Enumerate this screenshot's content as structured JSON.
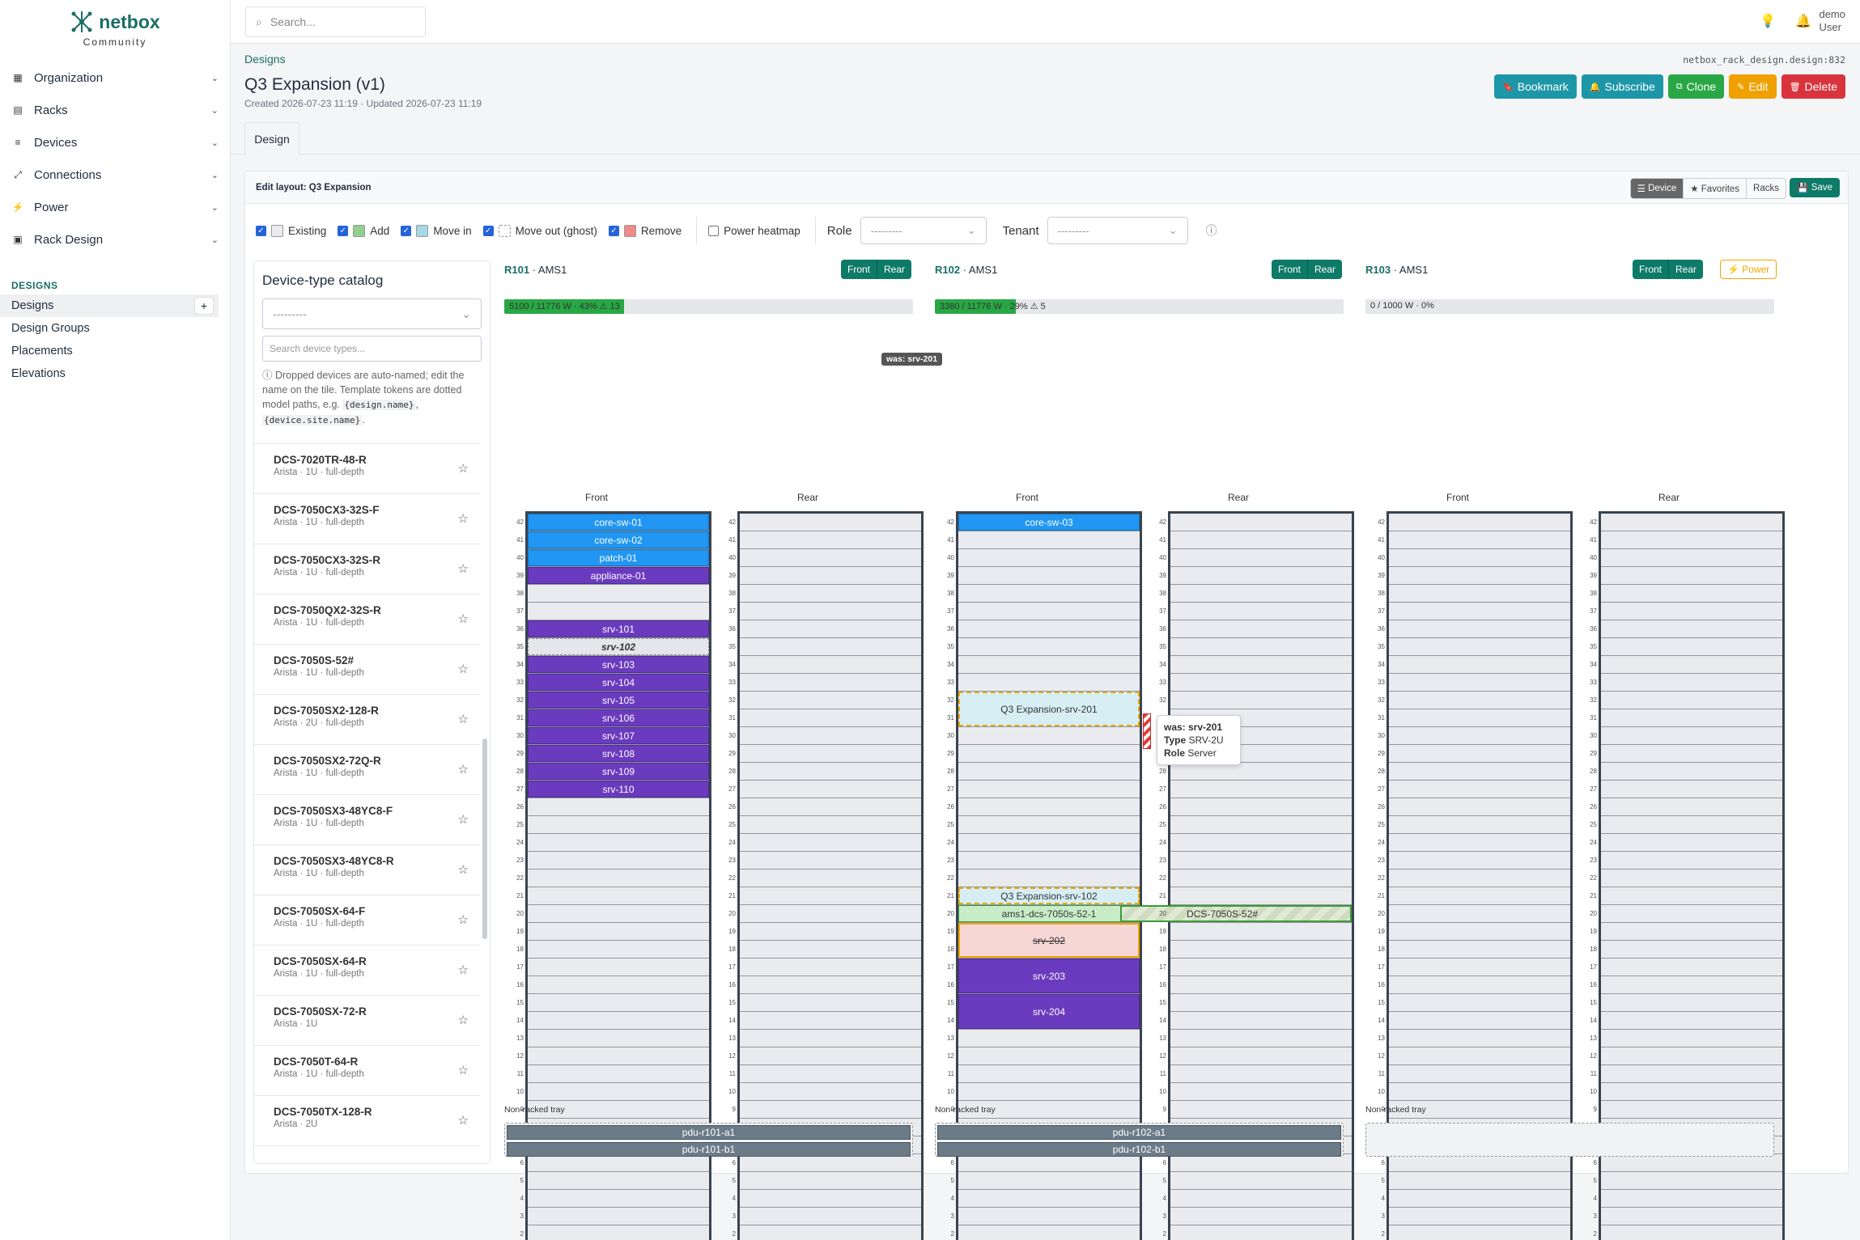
{
  "brand": {
    "name": "netbox",
    "edition": "Community"
  },
  "search": {
    "placeholder": "Search..."
  },
  "user": {
    "name": "demo",
    "role": "User"
  },
  "nav": [
    {
      "label": "Organization",
      "icon": "building-icon"
    },
    {
      "label": "Racks",
      "icon": "rack-icon"
    },
    {
      "label": "Devices",
      "icon": "server-icon"
    },
    {
      "label": "Connections",
      "icon": "cable-icon"
    },
    {
      "label": "Power",
      "icon": "bolt-icon"
    },
    {
      "label": "Rack Design",
      "icon": "layout-icon"
    }
  ],
  "designs_section": {
    "heading": "DESIGNS",
    "items": [
      "Designs",
      "Design Groups",
      "Placements",
      "Elevations"
    ],
    "add": "+"
  },
  "page": {
    "breadcrumb": "Designs",
    "object_id": "netbox_rack_design.design:832",
    "title": "Q3 Expansion (v1)",
    "meta": "Created 2026-07-23 11:19 · Updated 2026-07-23 11:19",
    "tab": "Design"
  },
  "actions": [
    {
      "label": "Bookmark",
      "color": "#1d97a8",
      "icon": "bookmark-icon"
    },
    {
      "label": "Subscribe",
      "color": "#1d97a8",
      "icon": "bell-icon"
    },
    {
      "label": "Clone",
      "color": "#2aa745",
      "icon": "copy-icon"
    },
    {
      "label": "Edit",
      "color": "#f0a000",
      "icon": "pencil-icon"
    },
    {
      "label": "Delete",
      "color": "#d9343e",
      "icon": "trash-icon"
    }
  ],
  "editor": {
    "heading": "Edit layout: Q3 Expansion",
    "views": [
      "Device",
      "★ Favorites",
      "Racks"
    ],
    "save": "Save"
  },
  "legend": [
    {
      "label": "Existing",
      "swatch": "#e9ebee"
    },
    {
      "label": "Add",
      "swatch": "#8fd08f"
    },
    {
      "label": "Move in",
      "swatch": "#a7d8e6"
    },
    {
      "label": "Move out (ghost)",
      "swatch": "#ffffff"
    },
    {
      "label": "Remove",
      "swatch": "#f08a8a"
    }
  ],
  "filters": {
    "heatmap": "Power heatmap",
    "role_label": "Role",
    "role_value": "---------",
    "tenant_label": "Tenant",
    "tenant_value": "---------"
  },
  "catalog": {
    "title": "Device-type catalog",
    "select": "---------",
    "search_placeholder": "Search device types...",
    "hint_pre": "Dropped devices are auto-named; edit the name on the tile. Template tokens are dotted model paths, e.g.",
    "token1": "{design.name}",
    "token2": "{device.site.name}",
    "items": [
      {
        "name": "DCS-7020TR-48-R",
        "sub": "Arista · 1U · full-depth"
      },
      {
        "name": "DCS-7050CX3-32S-F",
        "sub": "Arista · 1U · full-depth"
      },
      {
        "name": "DCS-7050CX3-32S-R",
        "sub": "Arista · 1U · full-depth"
      },
      {
        "name": "DCS-7050QX2-32S-R",
        "sub": "Arista · 1U · full-depth"
      },
      {
        "name": "DCS-7050S-52#",
        "sub": "Arista · 1U · full-depth"
      },
      {
        "name": "DCS-7050SX2-128-R",
        "sub": "Arista · 2U · full-depth"
      },
      {
        "name": "DCS-7050SX2-72Q-R",
        "sub": "Arista · 1U · full-depth"
      },
      {
        "name": "DCS-7050SX3-48YC8-F",
        "sub": "Arista · 1U · full-depth"
      },
      {
        "name": "DCS-7050SX3-48YC8-R",
        "sub": "Arista · 1U · full-depth"
      },
      {
        "name": "DCS-7050SX-64-F",
        "sub": "Arista · 1U · full-depth"
      },
      {
        "name": "DCS-7050SX-64-R",
        "sub": "Arista · 1U · full-depth"
      },
      {
        "name": "DCS-7050SX-72-R",
        "sub": "Arista · 1U"
      },
      {
        "name": "DCS-7050T-64-R",
        "sub": "Arista · 1U · full-depth"
      },
      {
        "name": "DCS-7050TX-128-R",
        "sub": "Arista · 2U"
      }
    ]
  },
  "racks": [
    {
      "name": "R101",
      "site": "AMS1",
      "power_text": "5100 / 11776 W · 43% ⚠ 13",
      "power_pct": 43,
      "front": [
        {
          "label": "core-sw-01",
          "u": 42,
          "h": 1,
          "kind": "switch"
        },
        {
          "label": "core-sw-02",
          "u": 41,
          "h": 1,
          "kind": "switch"
        },
        {
          "label": "patch-01",
          "u": 40,
          "h": 1,
          "kind": "switch"
        },
        {
          "label": "appliance-01",
          "u": 39,
          "h": 1,
          "kind": "server"
        },
        {
          "label": "srv-101",
          "u": 36,
          "h": 1,
          "kind": "server"
        },
        {
          "label": "srv-102",
          "u": 35,
          "h": 1,
          "kind": "ghost"
        },
        {
          "label": "srv-103",
          "u": 34,
          "h": 1,
          "kind": "server"
        },
        {
          "label": "srv-104",
          "u": 33,
          "h": 1,
          "kind": "server"
        },
        {
          "label": "srv-105",
          "u": 32,
          "h": 1,
          "kind": "server"
        },
        {
          "label": "srv-106",
          "u": 31,
          "h": 1,
          "kind": "server"
        },
        {
          "label": "srv-107",
          "u": 30,
          "h": 1,
          "kind": "server"
        },
        {
          "label": "srv-108",
          "u": 29,
          "h": 1,
          "kind": "server"
        },
        {
          "label": "srv-109",
          "u": 28,
          "h": 1,
          "kind": "server"
        },
        {
          "label": "srv-110",
          "u": 27,
          "h": 1,
          "kind": "server"
        }
      ],
      "rear": [],
      "tray": [
        "pdu-r101-a1",
        "pdu-r101-b1"
      ]
    },
    {
      "name": "R102",
      "site": "AMS1",
      "power_text": "3380 / 11776 W · 29% ⚠ 5",
      "power_pct": 29,
      "front": [
        {
          "label": "core-sw-03",
          "u": 42,
          "h": 1,
          "kind": "switch"
        },
        {
          "label": "Q3 Expansion-srv-201",
          "u": 31,
          "h": 2,
          "kind": "movein"
        },
        {
          "label": "Q3 Expansion-srv-102",
          "u": 21,
          "h": 1,
          "kind": "movein"
        },
        {
          "label": "ams1-dcs-7050s-52-1",
          "u": 20,
          "h": 1,
          "kind": "add"
        },
        {
          "label": "srv-202",
          "u": 18,
          "h": 2,
          "kind": "remove"
        },
        {
          "label": "srv-203",
          "u": 16,
          "h": 2,
          "kind": "server"
        },
        {
          "label": "srv-204",
          "u": 14,
          "h": 2,
          "kind": "server"
        }
      ],
      "rear": [
        {
          "label": "DCS-7050S-52#",
          "u": 20,
          "h": 1,
          "kind": "addrear"
        }
      ],
      "tray": [
        "pdu-r102-a1",
        "pdu-r102-b1"
      ]
    },
    {
      "name": "R103",
      "site": "AMS1",
      "power_text": "0 / 1000 W · 0%",
      "power_pct": 0,
      "power_btn": "⚡ Power",
      "front": [],
      "rear": [],
      "tray": []
    }
  ],
  "rack_labels": {
    "front": "Front",
    "rear": "Rear",
    "tray": "Non-racked tray"
  },
  "tooltip": {
    "was": "was: srv-201",
    "type_label": "Type",
    "type": "SRV-2U",
    "role_label": "Role",
    "role": "Server"
  },
  "ghost_tip": "was: srv-201"
}
